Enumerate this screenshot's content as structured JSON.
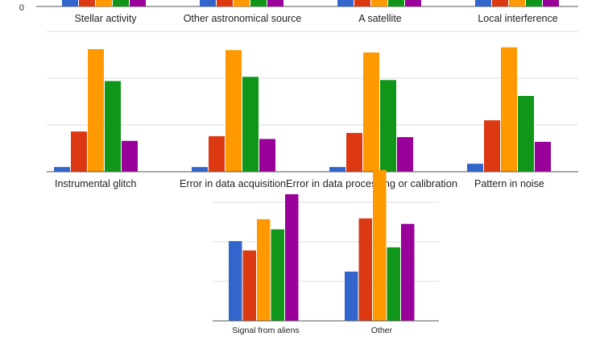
{
  "chart_data": {
    "type": "bar",
    "panels": [
      {
        "categories": [
          "Stellar activity",
          "Other astronomical source",
          "A satellite",
          "Local interference"
        ],
        "y_tick_labels": [
          "0"
        ],
        "series": [
          {
            "color": "#3366cc",
            "values": [
              null,
              null,
              null,
              null
            ]
          },
          {
            "color": "#dc3912",
            "values": [
              null,
              null,
              null,
              null
            ]
          },
          {
            "color": "#ff9900",
            "values": [
              null,
              null,
              null,
              null
            ]
          },
          {
            "color": "#109618",
            "values": [
              null,
              null,
              null,
              null
            ]
          },
          {
            "color": "#990099",
            "values": [
              null,
              null,
              null,
              null
            ]
          }
        ]
      },
      {
        "categories": [
          "Instrumental glitch",
          "Error in data acquisition",
          "Error in data processing or calibration",
          "Pattern in noise"
        ],
        "ylim": [
          0,
          4
        ],
        "series": [
          {
            "color": "#3366cc",
            "values": [
              0.1,
              0.1,
              0.1,
              0.17
            ]
          },
          {
            "color": "#dc3912",
            "values": [
              0.86,
              0.76,
              0.83,
              1.1
            ]
          },
          {
            "color": "#ff9900",
            "values": [
              2.62,
              2.6,
              2.55,
              2.66
            ]
          },
          {
            "color": "#109618",
            "values": [
              1.94,
              2.03,
              1.96,
              1.62
            ]
          },
          {
            "color": "#990099",
            "values": [
              0.66,
              0.7,
              0.74,
              0.64
            ]
          }
        ]
      },
      {
        "categories": [
          "Signal from aliens",
          "Other"
        ],
        "ylim": [
          0,
          2
        ],
        "series": [
          {
            "color": "#3366cc",
            "values": [
              1.02,
              0.63
            ]
          },
          {
            "color": "#dc3912",
            "values": [
              0.9,
              1.31
            ]
          },
          {
            "color": "#ff9900",
            "values": [
              1.3,
              1.93
            ]
          },
          {
            "color": "#109618",
            "values": [
              1.17,
              0.94
            ]
          },
          {
            "color": "#990099",
            "values": [
              1.62,
              1.24
            ]
          }
        ]
      }
    ]
  }
}
